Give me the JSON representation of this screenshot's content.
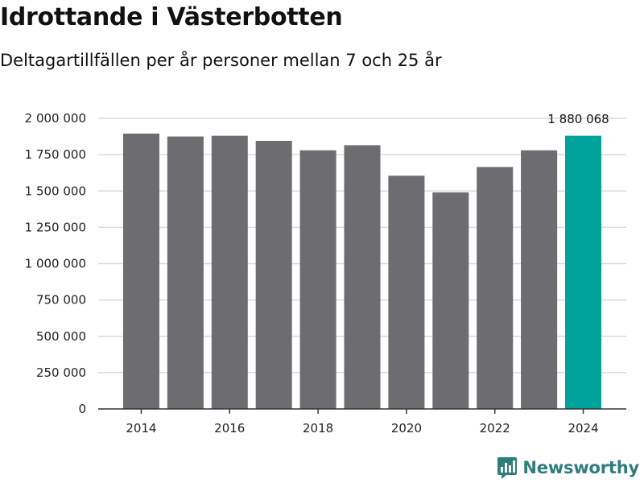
{
  "header": {
    "title": "Idrottande i Västerbotten",
    "subtitle": "Deltagartillfällen per år personer mellan 7 och 25 år"
  },
  "chart_data": {
    "type": "bar",
    "title": "Idrottande i Västerbotten",
    "subtitle": "Deltagartillfällen per år personer mellan 7 och 25 år",
    "xlabel": "",
    "ylabel": "",
    "categories": [
      "2014",
      "2015",
      "2016",
      "2017",
      "2018",
      "2019",
      "2020",
      "2021",
      "2022",
      "2023",
      "2024"
    ],
    "values": [
      1895000,
      1875000,
      1880000,
      1845000,
      1780000,
      1815000,
      1605000,
      1490000,
      1665000,
      1780000,
      1880068
    ],
    "x_tick_labels": [
      "2014",
      "2016",
      "2018",
      "2020",
      "2022",
      "2024"
    ],
    "ylim": [
      0,
      2000000
    ],
    "y_ticks": [
      0,
      250000,
      500000,
      750000,
      1000000,
      1250000,
      1500000,
      1750000,
      2000000
    ],
    "y_tick_labels": [
      "0",
      "250 000",
      "500 000",
      "750 000",
      "1 000 000",
      "1 250 000",
      "1 500 000",
      "1 750 000",
      "2 000 000"
    ],
    "highlight_category": "2024",
    "highlight_label": "1 880 068",
    "grid": true,
    "colors": {
      "bar": "#6d6c71",
      "highlight": "#00a39c",
      "grid": "#d9d9d9",
      "axis": "#333333"
    }
  },
  "footer": {
    "brand": "Newsworthy",
    "logo_icon": "newsworthy-logo-icon",
    "brand_color": "#2f7d7d"
  }
}
